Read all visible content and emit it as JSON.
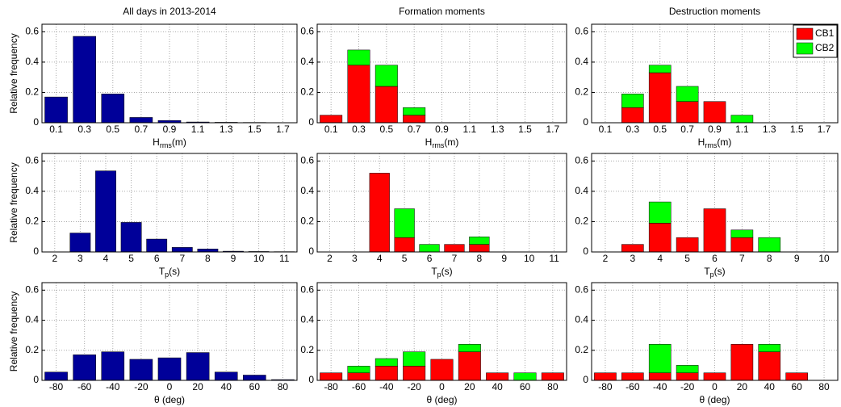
{
  "chart_data": [
    {
      "type": "bar",
      "title": "All days in 2013-2014",
      "y_label": "Relative frequency",
      "x_label": [
        "H",
        "rms",
        "(m)"
      ],
      "categories": [
        "0.1",
        "0.3",
        "0.5",
        "0.7",
        "0.9",
        "1.1",
        "1.3",
        "1.5",
        "1.7"
      ],
      "series": [
        {
          "color": "#000099",
          "values": [
            0.17,
            0.57,
            0.19,
            0.035,
            0.015,
            0.005,
            0.003,
            0.002,
            0.001
          ]
        }
      ],
      "ylim": [
        0,
        0.65
      ],
      "yticks": [
        0,
        0.2,
        0.4,
        0.6
      ],
      "grid": true
    },
    {
      "type": "stacked_bar",
      "title": "Formation moments",
      "x_label": [
        "H",
        "rms",
        "(m)"
      ],
      "categories": [
        "0.1",
        "0.3",
        "0.5",
        "0.7",
        "0.9",
        "1.1",
        "1.3",
        "1.5",
        "1.7"
      ],
      "series": [
        {
          "color": "#ff0000",
          "values": [
            0.05,
            0.38,
            0.24,
            0.05,
            0,
            0,
            0,
            0,
            0
          ]
        },
        {
          "color": "#00ff00",
          "values": [
            0,
            0.1,
            0.14,
            0.05,
            0,
            0,
            0,
            0,
            0
          ]
        }
      ],
      "ylim": [
        0,
        0.65
      ],
      "yticks": [
        0,
        0.2,
        0.4,
        0.6
      ],
      "grid": true
    },
    {
      "type": "stacked_bar",
      "title": "Destruction moments",
      "x_label": [
        "H",
        "rms",
        "(m)"
      ],
      "categories": [
        "0.1",
        "0.3",
        "0.5",
        "0.7",
        "0.9",
        "1.1",
        "1.3",
        "1.5",
        "1.7"
      ],
      "series": [
        {
          "name": "CB1",
          "color": "#ff0000",
          "values": [
            0,
            0.1,
            0.33,
            0.14,
            0.14,
            0,
            0,
            0,
            0
          ]
        },
        {
          "name": "CB2",
          "color": "#00ff00",
          "values": [
            0,
            0.09,
            0.05,
            0.1,
            0,
            0.05,
            0,
            0,
            0
          ]
        }
      ],
      "ylim": [
        0,
        0.65
      ],
      "yticks": [
        0,
        0.2,
        0.4,
        0.6
      ],
      "grid": true,
      "legend": "upper right"
    },
    {
      "type": "bar",
      "y_label": "Relative frequency",
      "x_label": [
        "T",
        "p",
        "(s)"
      ],
      "categories": [
        "2",
        "3",
        "4",
        "5",
        "6",
        "7",
        "8",
        "9",
        "10",
        "11"
      ],
      "series": [
        {
          "color": "#000099",
          "values": [
            0,
            0.125,
            0.535,
            0.195,
            0.085,
            0.03,
            0.02,
            0.005,
            0.003,
            0.002
          ]
        }
      ],
      "ylim": [
        0,
        0.65
      ],
      "yticks": [
        0,
        0.2,
        0.4,
        0.6
      ],
      "grid": true
    },
    {
      "type": "stacked_bar",
      "x_label": [
        "T",
        "p",
        "(s)"
      ],
      "categories": [
        "2",
        "3",
        "4",
        "5",
        "6",
        "7",
        "8",
        "9",
        "10",
        "11"
      ],
      "series": [
        {
          "color": "#ff0000",
          "values": [
            0,
            0,
            0.52,
            0.095,
            0,
            0.05,
            0.05,
            0,
            0,
            0
          ]
        },
        {
          "color": "#00ff00",
          "values": [
            0,
            0,
            0,
            0.19,
            0.05,
            0,
            0.05,
            0,
            0,
            0
          ]
        }
      ],
      "ylim": [
        0,
        0.65
      ],
      "yticks": [
        0,
        0.2,
        0.4,
        0.6
      ],
      "grid": true
    },
    {
      "type": "stacked_bar",
      "x_label": [
        "T",
        "p",
        "(s)"
      ],
      "categories": [
        "2",
        "3",
        "4",
        "5",
        "6",
        "7",
        "8",
        "9",
        "10"
      ],
      "series": [
        {
          "color": "#ff0000",
          "values": [
            0,
            0.05,
            0.19,
            0.095,
            0.285,
            0.095,
            0,
            0,
            0
          ]
        },
        {
          "color": "#00ff00",
          "values": [
            0,
            0,
            0.14,
            0,
            0,
            0.05,
            0.095,
            0,
            0
          ]
        }
      ],
      "ylim": [
        0,
        0.65
      ],
      "yticks": [
        0,
        0.2,
        0.4,
        0.6
      ],
      "grid": true
    },
    {
      "type": "bar",
      "y_label": "Relative frequency",
      "x_label": [
        "θ (deg)"
      ],
      "categories": [
        "-80",
        "-60",
        "-40",
        "-20",
        "0",
        "20",
        "40",
        "60",
        "80"
      ],
      "series": [
        {
          "color": "#000099",
          "values": [
            0.055,
            0.17,
            0.19,
            0.14,
            0.15,
            0.185,
            0.055,
            0.035,
            0.005
          ]
        }
      ],
      "ylim": [
        0,
        0.65
      ],
      "yticks": [
        0,
        0.2,
        0.4,
        0.6
      ],
      "grid": true
    },
    {
      "type": "stacked_bar",
      "x_label": [
        "θ (deg)"
      ],
      "categories": [
        "-80",
        "-60",
        "-40",
        "-20",
        "0",
        "20",
        "40",
        "60",
        "80"
      ],
      "series": [
        {
          "color": "#ff0000",
          "values": [
            0.05,
            0.05,
            0.095,
            0.095,
            0.14,
            0.19,
            0.05,
            0,
            0.05
          ]
        },
        {
          "color": "#00ff00",
          "values": [
            0,
            0.045,
            0.05,
            0.095,
            0,
            0.05,
            0,
            0.05,
            0
          ]
        }
      ],
      "ylim": [
        0,
        0.65
      ],
      "yticks": [
        0,
        0.2,
        0.4,
        0.6
      ],
      "grid": true
    },
    {
      "type": "stacked_bar",
      "x_label": [
        "θ (deg)"
      ],
      "categories": [
        "-80",
        "-60",
        "-40",
        "-20",
        "0",
        "20",
        "40",
        "60",
        "80"
      ],
      "series": [
        {
          "color": "#ff0000",
          "values": [
            0.05,
            0.05,
            0.05,
            0.05,
            0.05,
            0.24,
            0.19,
            0.05,
            0
          ]
        },
        {
          "color": "#00ff00",
          "values": [
            0,
            0,
            0.19,
            0.05,
            0,
            0,
            0.05,
            0,
            0
          ]
        }
      ],
      "ylim": [
        0,
        0.65
      ],
      "yticks": [
        0,
        0.2,
        0.4,
        0.6
      ],
      "grid": true
    }
  ]
}
